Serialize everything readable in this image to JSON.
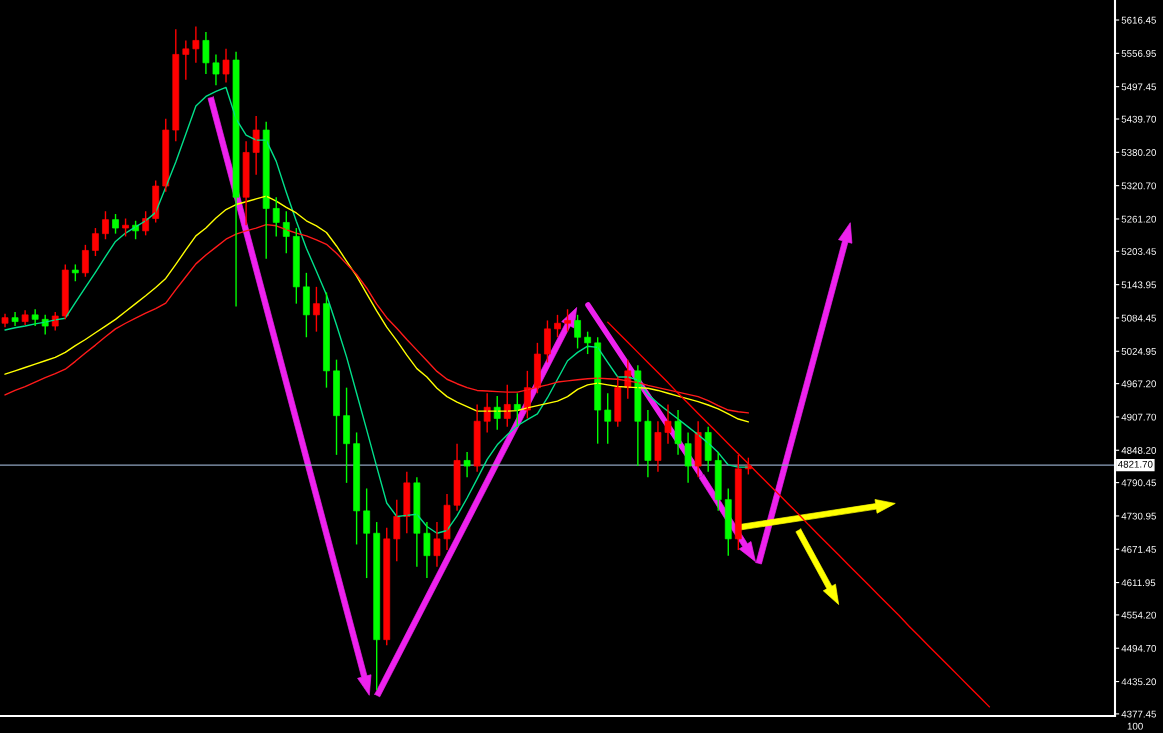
{
  "chart_data": {
    "type": "candlestick",
    "categories": [
      null,
      null,
      null,
      null,
      null,
      null,
      null,
      null,
      null,
      null,
      null,
      null,
      null,
      null,
      null,
      null,
      null,
      null,
      null,
      null,
      null,
      null,
      null,
      null,
      null,
      null,
      null,
      null,
      null,
      null,
      null,
      null,
      null,
      null,
      null,
      null,
      null,
      null,
      null,
      null,
      null,
      null,
      null,
      null,
      null,
      null,
      null,
      null,
      null,
      null,
      null,
      null,
      null,
      null,
      null,
      null,
      null,
      null,
      null,
      null,
      null,
      null,
      null,
      null,
      null,
      null,
      null,
      null,
      null,
      null,
      null,
      null,
      null,
      null,
      null,
      null,
      null,
      null,
      null,
      null,
      null,
      null,
      null,
      null,
      null,
      null,
      null,
      null,
      null,
      null,
      null,
      null,
      null,
      null,
      null,
      null,
      null,
      null,
      null,
      null,
      null,
      null,
      null,
      null,
      null,
      null,
      null,
      null,
      null,
      null,
      null
    ],
    "ohlc": [
      [
        5075,
        5092,
        5068,
        5085
      ],
      [
        5085,
        5095,
        5070,
        5078
      ],
      [
        5078,
        5098,
        5072,
        5090
      ],
      [
        5090,
        5100,
        5070,
        5082
      ],
      [
        5082,
        5090,
        5055,
        5070
      ],
      [
        5070,
        5095,
        5062,
        5088
      ],
      [
        5088,
        5180,
        5082,
        5170
      ],
      [
        5170,
        5180,
        5150,
        5165
      ],
      [
        5165,
        5215,
        5158,
        5205
      ],
      [
        5205,
        5245,
        5195,
        5235
      ],
      [
        5235,
        5275,
        5225,
        5260
      ],
      [
        5260,
        5270,
        5235,
        5245
      ],
      [
        5245,
        5262,
        5230,
        5250
      ],
      [
        5250,
        5258,
        5225,
        5240
      ],
      [
        5240,
        5275,
        5232,
        5262
      ],
      [
        5262,
        5330,
        5255,
        5320
      ],
      [
        5320,
        5440,
        5310,
        5420
      ],
      [
        5420,
        5600,
        5400,
        5555
      ],
      [
        5555,
        5580,
        5510,
        5565
      ],
      [
        5565,
        5605,
        5540,
        5580
      ],
      [
        5580,
        5595,
        5520,
        5540
      ],
      [
        5540,
        5555,
        5500,
        5520
      ],
      [
        5520,
        5565,
        5505,
        5545
      ],
      [
        5545,
        5560,
        5105,
        5300
      ],
      [
        5300,
        5400,
        5250,
        5380
      ],
      [
        5380,
        5445,
        5340,
        5420
      ],
      [
        5420,
        5435,
        5190,
        5280
      ],
      [
        5280,
        5300,
        5230,
        5255
      ],
      [
        5255,
        5275,
        5200,
        5230
      ],
      [
        5230,
        5245,
        5110,
        5140
      ],
      [
        5140,
        5165,
        5050,
        5090
      ],
      [
        5090,
        5140,
        5060,
        5110
      ],
      [
        5110,
        5130,
        4960,
        4990
      ],
      [
        4990,
        5010,
        4840,
        4910
      ],
      [
        4910,
        4960,
        4790,
        4860
      ],
      [
        4860,
        4880,
        4680,
        4740
      ],
      [
        4740,
        4780,
        4620,
        4700
      ],
      [
        4700,
        4720,
        4420,
        4510
      ],
      [
        4510,
        4710,
        4500,
        4690
      ],
      [
        4690,
        4760,
        4650,
        4730
      ],
      [
        4730,
        4810,
        4700,
        4790
      ],
      [
        4790,
        4800,
        4640,
        4700
      ],
      [
        4700,
        4720,
        4620,
        4660
      ],
      [
        4660,
        4720,
        4640,
        4690
      ],
      [
        4690,
        4770,
        4670,
        4750
      ],
      [
        4750,
        4860,
        4740,
        4830
      ],
      [
        4830,
        4845,
        4800,
        4820
      ],
      [
        4820,
        4930,
        4810,
        4900
      ],
      [
        4900,
        4950,
        4880,
        4925
      ],
      [
        4925,
        4945,
        4885,
        4905
      ],
      [
        4905,
        4965,
        4890,
        4930
      ],
      [
        4930,
        4950,
        4890,
        4920
      ],
      [
        4920,
        4990,
        4905,
        4960
      ],
      [
        4960,
        5040,
        4950,
        5020
      ],
      [
        5020,
        5080,
        5005,
        5065
      ],
      [
        5065,
        5090,
        5050,
        5075
      ],
      [
        5075,
        5100,
        5060,
        5080
      ],
      [
        5080,
        5090,
        5030,
        5050
      ],
      [
        5050,
        5060,
        5020,
        5040
      ],
      [
        5040,
        5050,
        4860,
        4920
      ],
      [
        4920,
        4950,
        4860,
        4900
      ],
      [
        4900,
        4980,
        4890,
        4960
      ],
      [
        4960,
        5010,
        4940,
        4990
      ],
      [
        4990,
        5000,
        4820,
        4900
      ],
      [
        4900,
        4920,
        4800,
        4830
      ],
      [
        4830,
        4900,
        4810,
        4880
      ],
      [
        4880,
        4930,
        4860,
        4900
      ],
      [
        4900,
        4920,
        4840,
        4860
      ],
      [
        4860,
        4880,
        4790,
        4820
      ],
      [
        4820,
        4900,
        4800,
        4880
      ],
      [
        4880,
        4890,
        4810,
        4830
      ],
      [
        4830,
        4845,
        4740,
        4760
      ],
      [
        4760,
        4780,
        4660,
        4690
      ],
      [
        4690,
        4840,
        4670,
        4815
      ],
      [
        4815,
        4835,
        4805,
        4820
      ],
      null,
      null,
      null,
      null,
      null,
      null,
      null,
      null,
      null,
      null,
      null,
      null,
      null,
      null,
      null,
      null,
      null,
      null,
      null,
      null,
      null,
      null,
      null,
      null,
      null,
      null,
      null,
      null,
      null,
      null,
      null,
      null,
      null,
      null,
      null,
      null
    ],
    "colors": [
      "#ff0000",
      "#00ff00",
      "#ff0000",
      "#00ff00",
      "#00ff00",
      "#ff0000",
      "#ff0000",
      "#00ff00",
      "#ff0000",
      "#ff0000",
      "#ff0000",
      "#00ff00",
      "#ff0000",
      "#00ff00",
      "#ff0000",
      "#ff0000",
      "#ff0000",
      "#ff0000",
      "#ff0000",
      "#ff0000",
      "#00ff00",
      "#00ff00",
      "#ff0000",
      "#00ff00",
      "#ff0000",
      "#ff0000",
      "#00ff00",
      "#00ff00",
      "#00ff00",
      "#00ff00",
      "#00ff00",
      "#ff0000",
      "#00ff00",
      "#00ff00",
      "#00ff00",
      "#00ff00",
      "#00ff00",
      "#00ff00",
      "#ff0000",
      "#ff0000",
      "#ff0000",
      "#00ff00",
      "#00ff00",
      "#ff0000",
      "#ff0000",
      "#ff0000",
      "#00ff00",
      "#ff0000",
      "#ff0000",
      "#00ff00",
      "#ff0000",
      "#00ff00",
      "#ff0000",
      "#ff0000",
      "#ff0000",
      "#ff0000",
      "#ff0000",
      "#00ff00",
      "#00ff00",
      "#00ff00",
      "#00ff00",
      "#ff0000",
      "#ff0000",
      "#00ff00",
      "#00ff00",
      "#ff0000",
      "#ff0000",
      "#00ff00",
      "#00ff00",
      "#ff0000",
      "#00ff00",
      "#00ff00",
      "#00ff00",
      "#ff0000",
      "#ff0000",
      null,
      null,
      null,
      null,
      null,
      null,
      null,
      null,
      null,
      null,
      null,
      null,
      null,
      null,
      null,
      null,
      null,
      null,
      null,
      null,
      null,
      null,
      null,
      null,
      null,
      null,
      null,
      null,
      null,
      null,
      null,
      null,
      null,
      null,
      null,
      null
    ],
    "series": [
      {
        "type": "line",
        "color": "#00e08a",
        "values": [
          5063,
          5067,
          5070,
          5074,
          5077,
          5081,
          5084,
          5112,
          5139,
          5166,
          5194,
          5221,
          5236,
          5247,
          5258,
          5273,
          5318,
          5363,
          5413,
          5463,
          5480,
          5489,
          5496,
          5440,
          5411,
          5402,
          5402,
          5364,
          5309,
          5257,
          5209,
          5168,
          5126,
          5072,
          5015,
          4950,
          4885,
          4819,
          4754,
          4730,
          4732,
          4734,
          4712,
          4700,
          4705,
          4731,
          4763,
          4797,
          4832,
          4858,
          4876,
          4892,
          4903,
          4913,
          4942,
          4975,
          5008,
          5023,
          5034,
          5032,
          5005,
          4979,
          4979,
          4974,
          4948,
          4932,
          4918,
          4904,
          4890,
          4876,
          4861,
          4844,
          4822,
          4818,
          4818,
          null,
          null,
          null,
          null,
          null,
          null,
          null,
          null,
          null,
          null,
          null,
          null,
          null,
          null,
          null,
          null,
          null,
          null,
          null,
          null,
          null,
          null,
          null,
          null,
          null,
          null,
          null,
          null,
          null,
          null,
          null,
          null,
          null,
          null,
          null,
          null
        ]
      },
      {
        "type": "line",
        "color": "#ffff00",
        "values": [
          4984,
          4990,
          4996,
          5002,
          5008,
          5014,
          5023,
          5035,
          5046,
          5058,
          5070,
          5082,
          5096,
          5110,
          5124,
          5139,
          5155,
          5180,
          5206,
          5231,
          5245,
          5263,
          5278,
          5287,
          5292,
          5297,
          5302,
          5293,
          5282,
          5272,
          5258,
          5249,
          5237,
          5213,
          5186,
          5159,
          5128,
          5097,
          5068,
          5044,
          5018,
          4994,
          4979,
          4959,
          4944,
          4934,
          4926,
          4918,
          4918,
          4918,
          4918,
          4919,
          4924,
          4928,
          4932,
          4936,
          4944,
          4957,
          4965,
          4968,
          4965,
          4962,
          4961,
          4960,
          4959,
          4955,
          4950,
          4945,
          4940,
          4935,
          4929,
          4922,
          4913,
          4904,
          4899,
          null,
          null,
          null,
          null,
          null,
          null,
          null,
          null,
          null,
          null,
          null,
          null,
          null,
          null,
          null,
          null,
          null,
          null,
          null,
          null,
          null,
          null,
          null,
          null,
          null,
          null,
          null,
          null,
          null,
          null,
          null,
          null,
          null,
          null,
          null,
          null
        ]
      },
      {
        "type": "line",
        "color": "#ff1a1a",
        "values": [
          4947,
          4955,
          4962,
          4970,
          4978,
          4985,
          4993,
          5007,
          5022,
          5036,
          5051,
          5065,
          5075,
          5084,
          5093,
          5101,
          5111,
          5135,
          5158,
          5181,
          5197,
          5211,
          5225,
          5234,
          5240,
          5245,
          5251,
          5249,
          5242,
          5236,
          5231,
          5224,
          5216,
          5200,
          5181,
          5162,
          5138,
          5109,
          5085,
          5066,
          5046,
          5027,
          5008,
          4989,
          4975,
          4967,
          4960,
          4955,
          4954,
          4953,
          4952,
          4952,
          4956,
          4961,
          4965,
          4970,
          4972,
          4974,
          4976,
          4977,
          4976,
          4975,
          4972,
          4969,
          4964,
          4960,
          4956,
          4952,
          4948,
          4944,
          4937,
          4928,
          4920,
          4917,
          4915,
          null,
          null,
          null,
          null,
          null,
          null,
          null,
          null,
          null,
          null,
          null,
          null,
          null,
          null,
          null,
          null,
          null,
          null,
          null,
          null,
          null,
          null,
          null,
          null,
          null,
          null,
          null,
          null,
          null,
          null,
          null,
          null,
          null,
          null,
          null,
          null
        ]
      },
      {
        "type": "line",
        "color": "#ff0000",
        "values": [
          null,
          null,
          null,
          null,
          null,
          null,
          null,
          null,
          null,
          null,
          null,
          null,
          null,
          null,
          null,
          null,
          null,
          null,
          null,
          null,
          null,
          null,
          null,
          null,
          null,
          null,
          null,
          null,
          null,
          null,
          null,
          null,
          null,
          null,
          null,
          null,
          null,
          null,
          null,
          null,
          null,
          null,
          null,
          null,
          null,
          null,
          null,
          null,
          null,
          null,
          null,
          null,
          null,
          null,
          null,
          null,
          null,
          null,
          null,
          null,
          5077,
          5059,
          5041,
          5023,
          5005,
          4987,
          4969,
          4950,
          4932,
          4914,
          4896,
          4878,
          4860,
          4842,
          4824,
          4806,
          4788,
          4770,
          4752,
          4734,
          4715,
          4697,
          4679,
          4661,
          4643,
          4625,
          4607,
          4589,
          4571,
          4553,
          4534,
          4516,
          4498,
          4480,
          4462,
          4444,
          4426,
          4408,
          4390,
          null,
          null,
          null,
          null,
          null,
          null,
          null,
          null,
          null,
          null,
          null,
          null
        ]
      }
    ],
    "ylim": [
      4373.7,
      5652.2
    ],
    "yticks": [
      5616.45,
      5556.95,
      5497.45,
      {
        "value": 5439.7,
        "label": "5439.70"
      },
      {
        "value": 5380.2,
        "label": "5380.20"
      },
      {
        "value": 5320.7,
        "label": "5320.70"
      },
      {
        "value": 5261.2,
        "label": "5261.20"
      },
      5203.45,
      5143.95,
      5084.45,
      5024.95,
      {
        "value": 4967.2,
        "label": "4967.20"
      },
      {
        "value": 4907.7,
        "label": "4907.70"
      },
      {
        "value": 4848.2,
        "label": "4848.20"
      },
      4790.45,
      4730.95,
      4671.45,
      4611.95,
      {
        "value": 4554.2,
        "label": "4554.20"
      },
      {
        "value": 4494.7,
        "label": "4494.70"
      },
      {
        "value": 4435.2,
        "label": "4435.20"
      },
      4377.45
    ],
    "ref_lines": [
      {
        "axis": "y",
        "value": 4821.7,
        "label": "4821.70",
        "color": "#8fa3bf"
      }
    ],
    "annotations": [
      "100"
    ],
    "tick_labels": "y",
    "grid": false
  }
}
